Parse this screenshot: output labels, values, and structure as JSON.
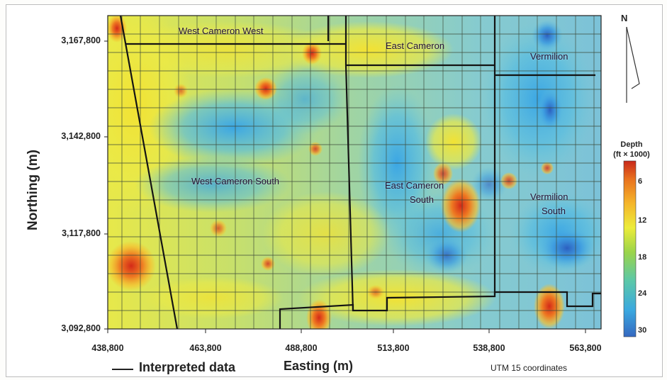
{
  "axes": {
    "ylabel": "Northing (m)",
    "xlabel": "Easting (m)",
    "y_ticks": [
      "3,167,800",
      "3,142,800",
      "3,117,800",
      "3,092,800"
    ],
    "x_ticks": [
      "438,800",
      "463,800",
      "488,800",
      "513,800",
      "538,800",
      "563,800"
    ]
  },
  "regions": {
    "wcw": "West Cameron West",
    "ec": "East Cameron",
    "verm": "Vermilion",
    "wcs": "West Cameron South",
    "ecs1": "East Cameron",
    "ecs2": "South",
    "vs1": "Vermilion",
    "vs2": "South"
  },
  "north": "N",
  "colorbar": {
    "title_line1": "Depth",
    "title_line2": "(ft × 1000)",
    "ticks": [
      "6",
      "12",
      "18",
      "24",
      "30"
    ],
    "colors": [
      "#c8281a",
      "#e8701e",
      "#f5b52a",
      "#ecec3a",
      "#9ad44a",
      "#5cc8a8",
      "#3aa8e0",
      "#3568c0"
    ]
  },
  "legend": {
    "line_label": "Interpreted data"
  },
  "note": "UTM 15 coordinates"
}
